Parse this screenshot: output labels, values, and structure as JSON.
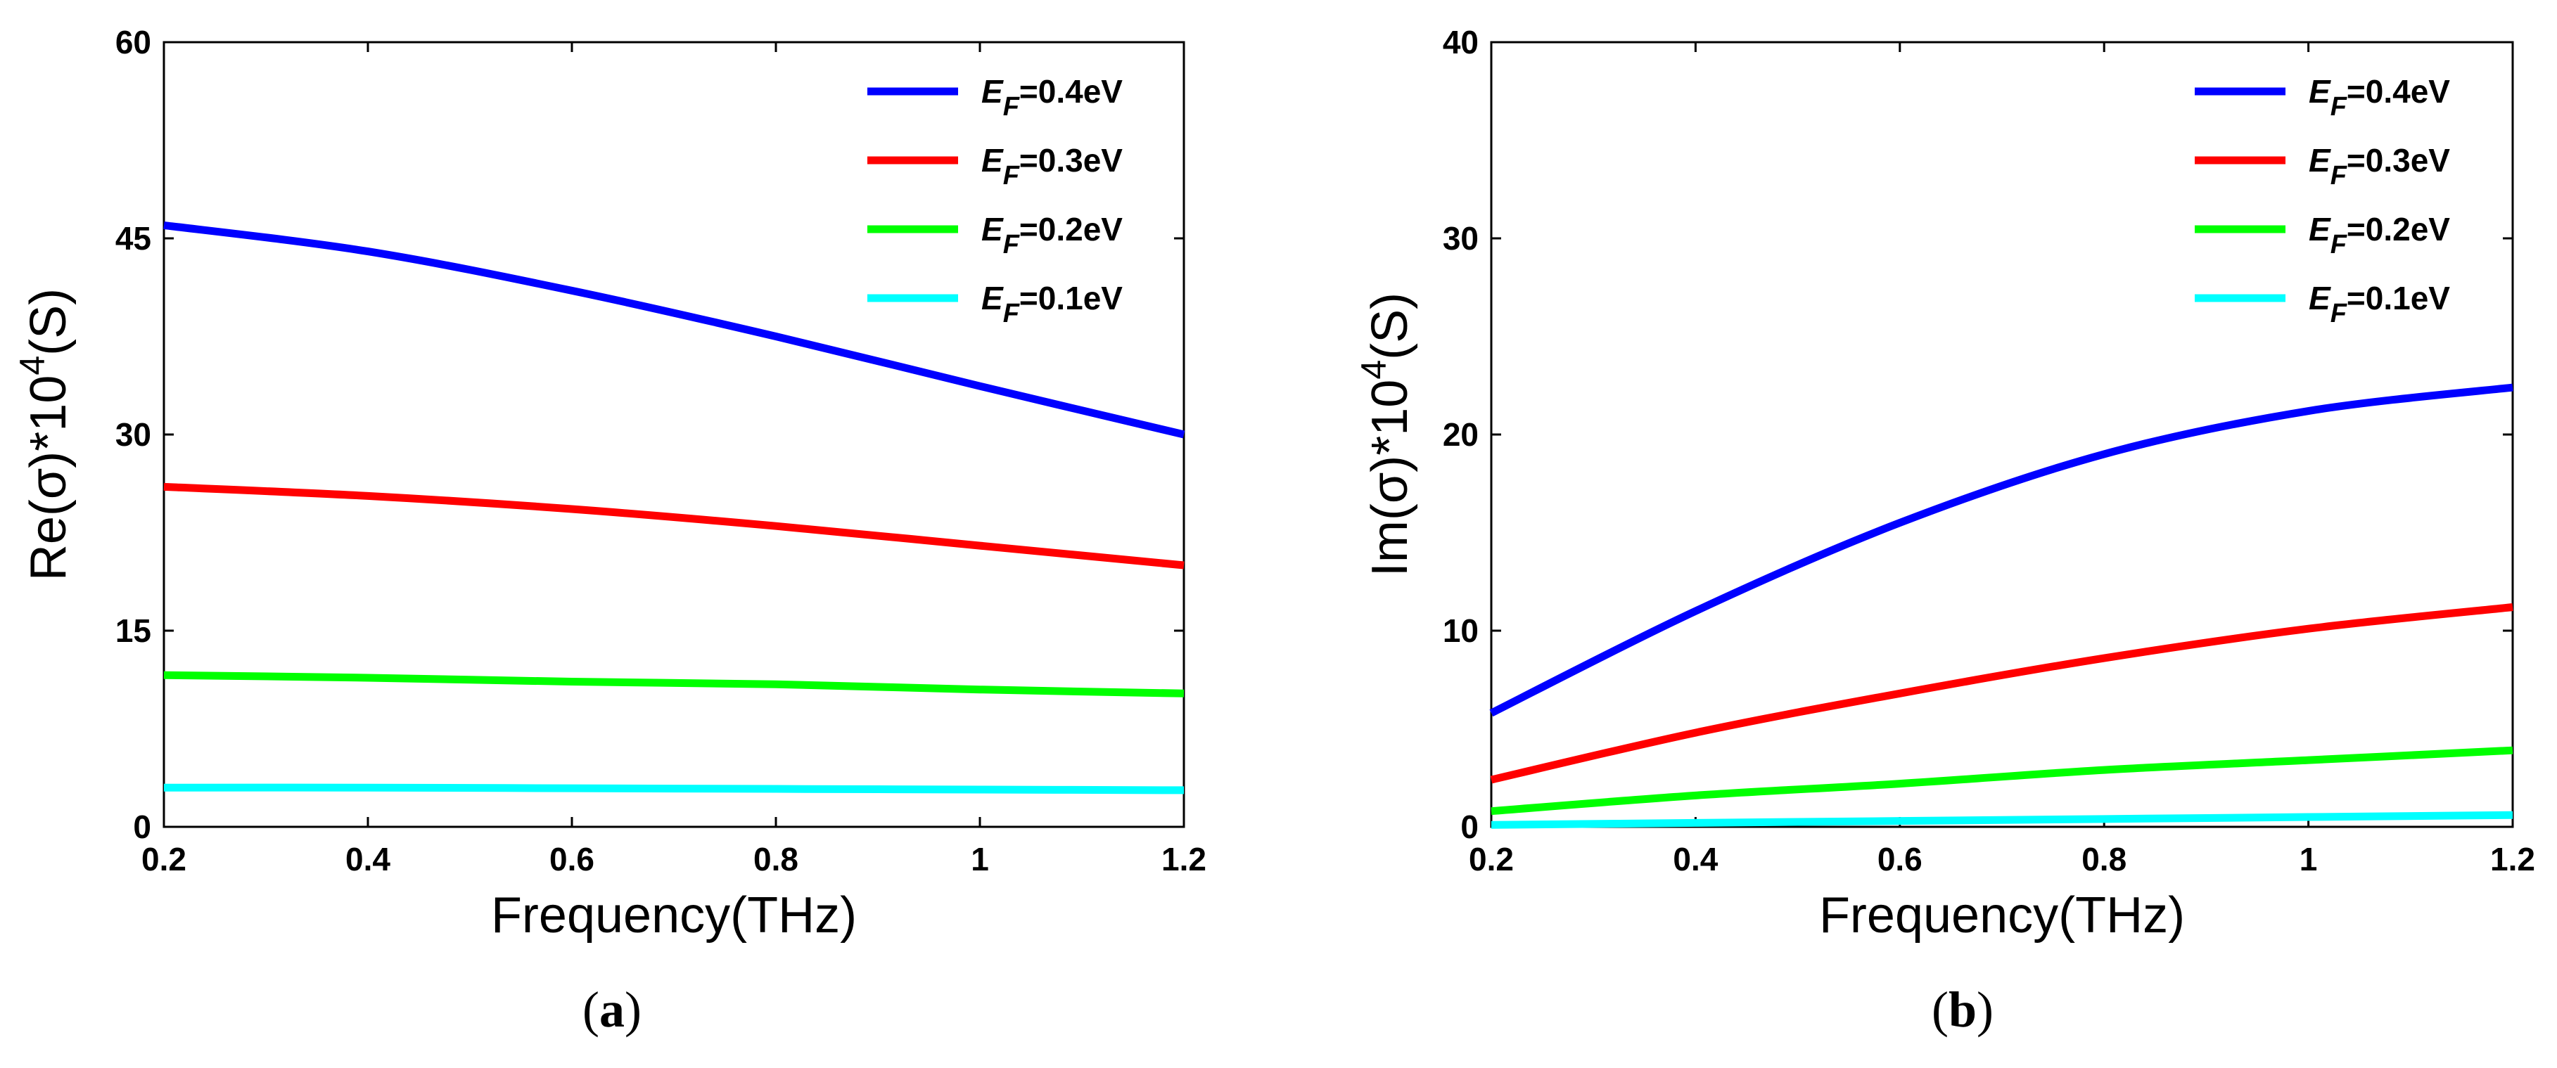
{
  "chart_data": [
    {
      "type": "line",
      "panel_label": "a",
      "xlabel": "Frequency(THz)",
      "ylabel": "Re(σ)*10^4(S)",
      "ylabel_parts": {
        "base": "Re(σ)*10",
        "sup": "4",
        "suffix": "(S)"
      },
      "xlim": [
        0.2,
        1.2
      ],
      "ylim": [
        0,
        60
      ],
      "xticks": [
        0.2,
        0.4,
        0.6,
        0.8,
        1.0,
        1.2
      ],
      "xtick_labels": [
        "0.2",
        "0.4",
        "0.6",
        "0.8",
        "1",
        "1.2"
      ],
      "yticks": [
        0,
        15,
        30,
        45,
        60
      ],
      "ytick_labels": [
        "0",
        "15",
        "30",
        "45",
        "60"
      ],
      "grid": false,
      "legend_position": "top-right",
      "x": [
        0.2,
        0.4,
        0.6,
        0.8,
        1.0,
        1.2
      ],
      "series": [
        {
          "name": "E_F=0.4eV",
          "symbol": "E",
          "sub": "F",
          "value_text": "=0.4eV",
          "color": "#0000ff",
          "values": [
            46.0,
            44.0,
            41.0,
            37.5,
            33.7,
            30.0
          ]
        },
        {
          "name": "E_F=0.3eV",
          "symbol": "E",
          "sub": "F",
          "value_text": "=0.3eV",
          "color": "#ff0000",
          "values": [
            26.0,
            25.3,
            24.3,
            23.0,
            21.5,
            20.0
          ]
        },
        {
          "name": "E_F=0.2eV",
          "symbol": "E",
          "sub": "F",
          "value_text": "=0.2eV",
          "color": "#00ff00",
          "values": [
            11.6,
            11.4,
            11.1,
            10.9,
            10.5,
            10.2
          ]
        },
        {
          "name": "E_F=0.1eV",
          "symbol": "E",
          "sub": "F",
          "value_text": "=0.1eV",
          "color": "#00ffff",
          "values": [
            3.0,
            3.0,
            2.95,
            2.9,
            2.85,
            2.8
          ]
        }
      ]
    },
    {
      "type": "line",
      "panel_label": "b",
      "xlabel": "Frequency(THz)",
      "ylabel": "Im(σ)*10^4(S)",
      "ylabel_parts": {
        "base": "Im(σ)*10",
        "sup": "4",
        "suffix": "(S)"
      },
      "xlim": [
        0.2,
        1.2
      ],
      "ylim": [
        0,
        40
      ],
      "xticks": [
        0.2,
        0.4,
        0.6,
        0.8,
        1.0,
        1.2
      ],
      "xtick_labels": [
        "0.2",
        "0.4",
        "0.6",
        "0.8",
        "1",
        "1.2"
      ],
      "yticks": [
        0,
        10,
        20,
        30,
        40
      ],
      "ytick_labels": [
        "0",
        "10",
        "20",
        "30",
        "40"
      ],
      "grid": false,
      "legend_position": "top-right",
      "x": [
        0.2,
        0.4,
        0.6,
        0.8,
        1.0,
        1.2
      ],
      "series": [
        {
          "name": "E_F=0.4eV",
          "symbol": "E",
          "sub": "F",
          "value_text": "=0.4eV",
          "color": "#0000ff",
          "values": [
            5.8,
            11.0,
            15.5,
            19.0,
            21.2,
            22.4
          ]
        },
        {
          "name": "E_F=0.3eV",
          "symbol": "E",
          "sub": "F",
          "value_text": "=0.3eV",
          "color": "#ff0000",
          "values": [
            2.4,
            4.8,
            6.8,
            8.6,
            10.1,
            11.2
          ]
        },
        {
          "name": "E_F=0.2eV",
          "symbol": "E",
          "sub": "F",
          "value_text": "=0.2eV",
          "color": "#00ff00",
          "values": [
            0.8,
            1.6,
            2.2,
            2.9,
            3.4,
            3.9
          ]
        },
        {
          "name": "E_F=0.1eV",
          "symbol": "E",
          "sub": "F",
          "value_text": "=0.1eV",
          "color": "#00ffff",
          "values": [
            0.1,
            0.2,
            0.3,
            0.4,
            0.5,
            0.6
          ]
        }
      ]
    }
  ]
}
